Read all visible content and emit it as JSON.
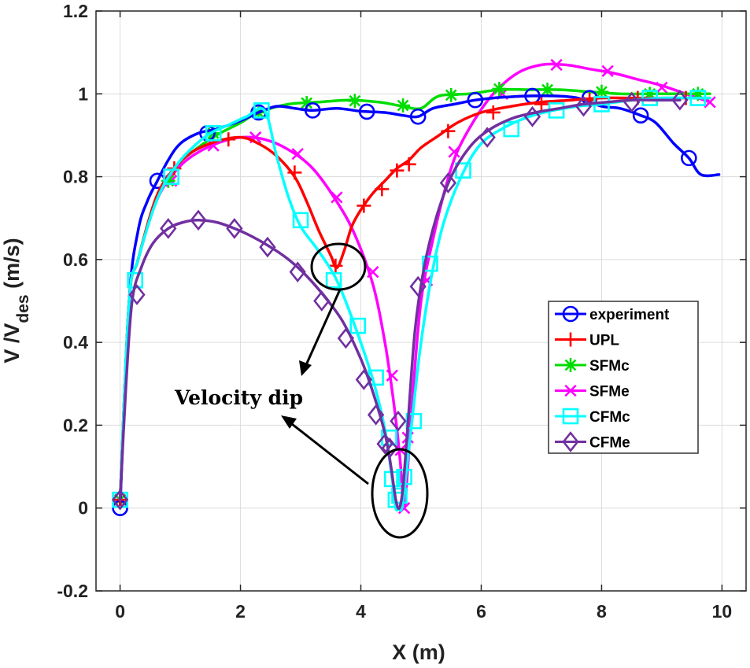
{
  "chart_data": {
    "type": "line",
    "xlabel": "X (m)",
    "ylabel": "V /V",
    "ylabel_subscript": "des",
    "ylabel_unit": " (m/s)",
    "xlim": [
      -0.4,
      10.4
    ],
    "ylim": [
      -0.2,
      1.2
    ],
    "xticks": [
      0,
      2,
      4,
      6,
      8,
      10
    ],
    "yticks": [
      -0.2,
      0,
      0.2,
      0.4,
      0.6,
      0.8,
      1,
      1.2
    ],
    "ytick_labels": [
      "-0.2",
      "0",
      "0.2",
      "0.4",
      "0.6",
      "0.8",
      "1",
      "1.2"
    ],
    "grid": true,
    "legend_position": "right",
    "annotation": "Velocity dip",
    "series": [
      {
        "name": "experiment",
        "color": "#0000ff",
        "marker": "circle",
        "x": [
          0,
          0.15,
          0.3,
          0.45,
          0.62,
          0.8,
          1.0,
          1.3,
          1.6,
          2.0,
          2.3,
          2.6,
          2.9,
          3.2,
          3.6,
          4.0,
          4.4,
          4.7,
          4.95,
          5.2,
          5.55,
          5.9,
          6.2,
          6.5,
          6.85,
          7.2,
          7.6,
          8.0,
          8.3,
          8.65,
          8.9,
          9.2,
          9.45,
          9.65,
          9.95
        ],
        "y": [
          0,
          0.5,
          0.67,
          0.74,
          0.79,
          0.84,
          0.88,
          0.905,
          0.915,
          0.935,
          0.955,
          0.97,
          0.965,
          0.96,
          0.965,
          0.958,
          0.955,
          0.948,
          0.945,
          0.965,
          0.975,
          0.985,
          0.99,
          0.993,
          0.995,
          0.995,
          0.99,
          0.97,
          0.965,
          0.948,
          0.93,
          0.88,
          0.845,
          0.805,
          0.805
        ],
        "marker_x": [
          0,
          0.62,
          1.45,
          2.3,
          3.2,
          4.1,
          4.95,
          5.9,
          6.85,
          7.8,
          8.65,
          9.45
        ],
        "marker_y": [
          0,
          0.79,
          0.905,
          0.955,
          0.96,
          0.957,
          0.945,
          0.985,
          0.995,
          0.99,
          0.948,
          0.845
        ]
      },
      {
        "name": "UPL",
        "color": "#ff0000",
        "marker": "plus",
        "x": [
          0,
          0.15,
          0.3,
          0.6,
          0.9,
          1.2,
          1.6,
          2.0,
          2.3,
          2.6,
          2.9,
          3.1,
          3.3,
          3.5,
          3.6,
          3.72,
          3.85,
          4.0,
          4.2,
          4.4,
          4.6,
          4.8,
          5.0,
          5.3,
          5.6,
          6.0,
          6.5,
          7.0,
          7.5,
          8.0,
          8.5,
          9.0,
          9.5,
          9.8
        ],
        "y": [
          0.02,
          0.5,
          0.6,
          0.75,
          0.82,
          0.86,
          0.885,
          0.895,
          0.88,
          0.85,
          0.8,
          0.74,
          0.67,
          0.61,
          0.58,
          0.62,
          0.68,
          0.72,
          0.76,
          0.79,
          0.82,
          0.84,
          0.87,
          0.9,
          0.93,
          0.955,
          0.97,
          0.98,
          0.985,
          0.99,
          0.99,
          0.99,
          0.99,
          0.99
        ],
        "marker_x": [
          0,
          0.9,
          1.8,
          2.9,
          3.58,
          4.05,
          4.35,
          4.6,
          4.8,
          5.45,
          6.2,
          7.0,
          7.8,
          8.6,
          9.4
        ],
        "marker_y": [
          0.02,
          0.82,
          0.89,
          0.81,
          0.585,
          0.73,
          0.77,
          0.815,
          0.83,
          0.91,
          0.955,
          0.975,
          0.985,
          0.99,
          0.99
        ]
      },
      {
        "name": "SFMc",
        "color": "#00dd00",
        "marker": "asterisk",
        "x": [
          0,
          0.15,
          0.3,
          0.6,
          0.9,
          1.2,
          1.6,
          2.0,
          2.3,
          2.8,
          3.3,
          3.8,
          4.3,
          4.7,
          5.0,
          5.3,
          5.8,
          6.3,
          6.8,
          7.3,
          7.8,
          8.3,
          8.8,
          9.3,
          9.8
        ],
        "y": [
          0.02,
          0.5,
          0.6,
          0.75,
          0.82,
          0.86,
          0.9,
          0.93,
          0.955,
          0.975,
          0.98,
          0.985,
          0.98,
          0.97,
          0.965,
          0.995,
          1.0,
          1.01,
          1.01,
          1.01,
          1.005,
          1.0,
          1.0,
          1.0,
          1.0
        ],
        "marker_x": [
          0,
          0.8,
          1.55,
          2.3,
          3.1,
          3.9,
          4.7,
          5.5,
          6.3,
          7.1,
          8.0,
          8.8,
          9.6
        ],
        "marker_y": [
          0.02,
          0.79,
          0.905,
          0.955,
          0.978,
          0.983,
          0.972,
          0.997,
          1.012,
          1.01,
          1.005,
          1.0,
          1.0
        ]
      },
      {
        "name": "SFMe",
        "color": "#ff00ff",
        "marker": "x",
        "x": [
          0,
          0.15,
          0.3,
          0.6,
          0.9,
          1.2,
          1.6,
          2.0,
          2.4,
          2.8,
          3.2,
          3.6,
          3.9,
          4.2,
          4.4,
          4.55,
          4.65,
          4.72,
          4.78,
          4.85,
          5.0,
          5.2,
          5.4,
          5.6,
          5.9,
          6.2,
          6.6,
          7.0,
          7.4,
          7.8,
          8.2,
          8.6,
          9.0,
          9.4,
          9.8
        ],
        "y": [
          0.02,
          0.5,
          0.6,
          0.74,
          0.81,
          0.85,
          0.88,
          0.895,
          0.89,
          0.865,
          0.82,
          0.74,
          0.66,
          0.54,
          0.4,
          0.25,
          0.12,
          0.0,
          0.1,
          0.25,
          0.5,
          0.65,
          0.77,
          0.86,
          0.94,
          1.0,
          1.05,
          1.07,
          1.07,
          1.06,
          1.05,
          1.035,
          1.02,
          1.0,
          0.98
        ],
        "marker_x": [
          0,
          0.85,
          1.55,
          2.25,
          2.95,
          3.6,
          4.2,
          4.52,
          4.66,
          4.72,
          4.78,
          5.1,
          5.55,
          6.35,
          7.25,
          8.1,
          9.0,
          9.8
        ],
        "marker_y": [
          0.02,
          0.79,
          0.875,
          0.895,
          0.855,
          0.75,
          0.57,
          0.32,
          0.14,
          0.0,
          0.17,
          0.55,
          0.86,
          1.0,
          1.07,
          1.055,
          1.015,
          0.98
        ]
      },
      {
        "name": "CFMc",
        "color": "#00ffff",
        "marker": "square",
        "x": [
          0,
          0.15,
          0.3,
          0.6,
          0.9,
          1.2,
          1.5,
          1.8,
          2.1,
          2.4,
          2.6,
          2.8,
          3.0,
          3.3,
          3.6,
          3.9,
          4.2,
          4.4,
          4.52,
          4.58,
          4.63,
          4.68,
          4.75,
          4.85,
          5.0,
          5.2,
          5.4,
          5.7,
          6.0,
          6.4,
          6.8,
          7.2,
          7.6,
          8.0,
          8.5,
          9.0,
          9.5,
          9.8
        ],
        "y": [
          0.02,
          0.5,
          0.6,
          0.74,
          0.82,
          0.87,
          0.905,
          0.925,
          0.945,
          0.96,
          0.85,
          0.75,
          0.68,
          0.62,
          0.55,
          0.44,
          0.31,
          0.19,
          0.07,
          0.0,
          0.0,
          0.0,
          0.08,
          0.21,
          0.4,
          0.58,
          0.7,
          0.81,
          0.88,
          0.92,
          0.945,
          0.96,
          0.97,
          0.975,
          0.985,
          0.99,
          0.99,
          0.99
        ],
        "marker_x": [
          0,
          0.25,
          0.85,
          1.55,
          2.35,
          3.0,
          3.55,
          3.95,
          4.25,
          4.47,
          4.52,
          4.58,
          4.64,
          4.72,
          4.88,
          5.15,
          5.7,
          6.5,
          7.25,
          8.0,
          8.8,
          9.6
        ],
        "marker_y": [
          0.02,
          0.55,
          0.8,
          0.905,
          0.96,
          0.695,
          0.55,
          0.44,
          0.315,
          0.17,
          0.07,
          0.02,
          0.03,
          0.075,
          0.21,
          0.59,
          0.815,
          0.915,
          0.96,
          0.975,
          0.99,
          0.99
        ]
      },
      {
        "name": "CFMe",
        "color": "#7030a0",
        "marker": "diamond",
        "x": [
          0,
          0.1,
          0.2,
          0.35,
          0.55,
          0.8,
          1.05,
          1.3,
          1.6,
          1.9,
          2.2,
          2.5,
          2.8,
          3.1,
          3.4,
          3.7,
          4.0,
          4.2,
          4.4,
          4.5,
          4.58,
          4.64,
          4.7,
          4.78,
          4.9,
          5.05,
          5.25,
          5.5,
          5.8,
          6.1,
          6.5,
          6.9,
          7.3,
          7.7,
          8.1,
          8.5,
          8.9,
          9.3
        ],
        "y": [
          0.02,
          0.3,
          0.5,
          0.58,
          0.64,
          0.675,
          0.69,
          0.695,
          0.69,
          0.675,
          0.655,
          0.63,
          0.6,
          0.56,
          0.51,
          0.45,
          0.36,
          0.28,
          0.18,
          0.1,
          0.02,
          0.0,
          0.05,
          0.2,
          0.43,
          0.58,
          0.7,
          0.8,
          0.87,
          0.91,
          0.94,
          0.955,
          0.965,
          0.975,
          0.98,
          0.985,
          0.985,
          0.985
        ],
        "marker_x": [
          0,
          0.28,
          0.8,
          1.3,
          1.9,
          2.45,
          2.95,
          3.35,
          3.75,
          4.05,
          4.25,
          4.4,
          4.48,
          4.62,
          4.95,
          5.45,
          6.1,
          6.85,
          7.7,
          8.5,
          9.3
        ],
        "marker_y": [
          0.02,
          0.515,
          0.675,
          0.695,
          0.675,
          0.63,
          0.57,
          0.5,
          0.41,
          0.31,
          0.225,
          0.155,
          0.145,
          0.21,
          0.535,
          0.785,
          0.895,
          0.945,
          0.97,
          0.98,
          0.985
        ]
      }
    ]
  }
}
